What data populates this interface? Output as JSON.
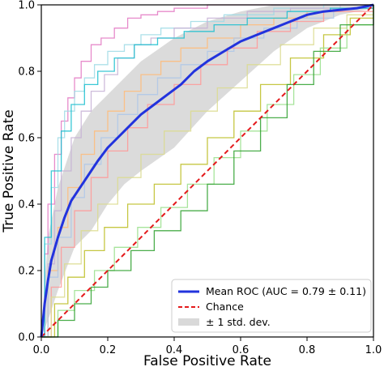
{
  "chart_data": {
    "type": "line",
    "title": "",
    "xlabel": "False Positive Rate",
    "ylabel": "True Positive Rate",
    "xlim": [
      0.0,
      1.0
    ],
    "ylim": [
      0.0,
      1.0
    ],
    "xticks": [
      "0.0",
      "0.2",
      "0.4",
      "0.6",
      "0.8",
      "1.0"
    ],
    "yticks": [
      "0.0",
      "0.2",
      "0.4",
      "0.6",
      "0.8",
      "1.0"
    ],
    "grid": false,
    "legend_position": "lower-right",
    "legend": [
      {
        "label": "Mean ROC (AUC = 0.79 ± 0.11)",
        "kind": "line",
        "color": "#2233dd"
      },
      {
        "label": "Chance",
        "kind": "dashed",
        "color": "#e41a1c"
      },
      {
        "label": "± 1 std. dev.",
        "kind": "band",
        "color": "#cfcfcf"
      }
    ],
    "mean_roc": {
      "name": "Mean ROC (AUC = 0.79 ± 0.11)",
      "color": "#2233dd",
      "x": [
        0,
        0.01,
        0.02,
        0.03,
        0.05,
        0.07,
        0.09,
        0.11,
        0.13,
        0.15,
        0.17,
        0.2,
        0.23,
        0.26,
        0.3,
        0.34,
        0.38,
        0.42,
        0.46,
        0.5,
        0.55,
        0.6,
        0.65,
        0.7,
        0.75,
        0.8,
        0.85,
        0.9,
        0.95,
        1.0
      ],
      "y": [
        0,
        0.1,
        0.17,
        0.23,
        0.3,
        0.36,
        0.41,
        0.44,
        0.47,
        0.5,
        0.53,
        0.57,
        0.6,
        0.63,
        0.67,
        0.7,
        0.73,
        0.76,
        0.8,
        0.83,
        0.86,
        0.89,
        0.91,
        0.93,
        0.95,
        0.97,
        0.98,
        0.985,
        0.99,
        1.0
      ]
    },
    "std_band": {
      "name": "± 1 std. dev.",
      "color": "#cfcfcf",
      "x": [
        0,
        0.02,
        0.05,
        0.1,
        0.15,
        0.2,
        0.25,
        0.3,
        0.4,
        0.5,
        0.6,
        0.7,
        0.8,
        0.9,
        1.0
      ],
      "upper": [
        0.02,
        0.3,
        0.45,
        0.6,
        0.68,
        0.73,
        0.78,
        0.83,
        0.9,
        0.95,
        0.98,
        1.0,
        1.0,
        1.0,
        1.0
      ],
      "lower": [
        0,
        0.05,
        0.14,
        0.27,
        0.32,
        0.4,
        0.46,
        0.5,
        0.57,
        0.68,
        0.77,
        0.86,
        0.93,
        0.97,
        0.99
      ]
    },
    "chance": {
      "name": "Chance",
      "color": "#e41a1c",
      "x": [
        0,
        1
      ],
      "y": [
        0,
        1
      ]
    },
    "fold_curves": [
      {
        "color": "#e377c2",
        "x": [
          0,
          0.01,
          0.02,
          0.04,
          0.06,
          0.08,
          0.1,
          0.12,
          0.15,
          0.18,
          0.22,
          0.26,
          0.3,
          0.35,
          0.4,
          0.5,
          0.6,
          0.75,
          0.9,
          1.0
        ],
        "y": [
          0,
          0.25,
          0.4,
          0.55,
          0.65,
          0.72,
          0.78,
          0.83,
          0.88,
          0.9,
          0.93,
          0.96,
          0.97,
          0.98,
          0.99,
          1.0,
          1.0,
          1.0,
          1.0,
          1.0
        ]
      },
      {
        "color": "#9edae5",
        "x": [
          0,
          0.01,
          0.03,
          0.05,
          0.07,
          0.1,
          0.13,
          0.16,
          0.2,
          0.25,
          0.3,
          0.36,
          0.45,
          0.55,
          0.7,
          0.85,
          1.0
        ],
        "y": [
          0,
          0.28,
          0.45,
          0.6,
          0.68,
          0.74,
          0.78,
          0.82,
          0.86,
          0.88,
          0.91,
          0.93,
          0.95,
          0.97,
          0.99,
          1.0,
          1.0
        ]
      },
      {
        "color": "#c5b0d5",
        "x": [
          0,
          0.02,
          0.04,
          0.06,
          0.09,
          0.12,
          0.15,
          0.19,
          0.23,
          0.28,
          0.33,
          0.4,
          0.5,
          0.62,
          0.75,
          0.9,
          1.0
        ],
        "y": [
          0,
          0.22,
          0.38,
          0.5,
          0.6,
          0.68,
          0.74,
          0.79,
          0.84,
          0.88,
          0.9,
          0.93,
          0.96,
          0.98,
          0.99,
          1.0,
          1.0
        ]
      },
      {
        "color": "#ffbb78",
        "x": [
          0,
          0.02,
          0.05,
          0.08,
          0.12,
          0.16,
          0.2,
          0.25,
          0.3,
          0.36,
          0.42,
          0.5,
          0.6,
          0.7,
          0.8,
          0.9,
          1.0
        ],
        "y": [
          0,
          0.2,
          0.33,
          0.45,
          0.55,
          0.62,
          0.68,
          0.74,
          0.79,
          0.83,
          0.87,
          0.9,
          0.94,
          0.96,
          0.98,
          0.99,
          1.0
        ]
      },
      {
        "color": "#aec7e8",
        "x": [
          0,
          0.02,
          0.05,
          0.09,
          0.13,
          0.18,
          0.23,
          0.29,
          0.35,
          0.42,
          0.5,
          0.58,
          0.67,
          0.77,
          0.88,
          1.0
        ],
        "y": [
          0,
          0.18,
          0.3,
          0.42,
          0.52,
          0.6,
          0.67,
          0.73,
          0.78,
          0.82,
          0.86,
          0.9,
          0.93,
          0.96,
          0.99,
          1.0
        ]
      },
      {
        "color": "#ff9896",
        "x": [
          0,
          0.03,
          0.06,
          0.1,
          0.15,
          0.2,
          0.26,
          0.32,
          0.4,
          0.48,
          0.56,
          0.65,
          0.75,
          0.85,
          1.0
        ],
        "y": [
          0,
          0.15,
          0.27,
          0.38,
          0.48,
          0.56,
          0.63,
          0.7,
          0.76,
          0.82,
          0.87,
          0.92,
          0.95,
          0.98,
          1.0
        ]
      },
      {
        "color": "#dbdb8d",
        "x": [
          0,
          0.03,
          0.07,
          0.12,
          0.17,
          0.23,
          0.3,
          0.37,
          0.45,
          0.53,
          0.62,
          0.72,
          0.82,
          0.92,
          1.0
        ],
        "y": [
          0,
          0.12,
          0.22,
          0.32,
          0.4,
          0.48,
          0.55,
          0.62,
          0.68,
          0.75,
          0.82,
          0.88,
          0.93,
          0.97,
          1.0
        ]
      },
      {
        "color": "#bcbd22",
        "x": [
          0,
          0.04,
          0.08,
          0.13,
          0.19,
          0.26,
          0.34,
          0.42,
          0.5,
          0.58,
          0.66,
          0.75,
          0.85,
          0.93,
          1.0
        ],
        "y": [
          0,
          0.1,
          0.18,
          0.26,
          0.33,
          0.4,
          0.46,
          0.52,
          0.6,
          0.68,
          0.76,
          0.84,
          0.91,
          0.96,
          1.0
        ]
      },
      {
        "color": "#98df8a",
        "x": [
          0,
          0.05,
          0.1,
          0.16,
          0.22,
          0.29,
          0.36,
          0.44,
          0.52,
          0.6,
          0.68,
          0.76,
          0.84,
          0.92,
          1.0
        ],
        "y": [
          0,
          0.08,
          0.14,
          0.2,
          0.27,
          0.33,
          0.39,
          0.46,
          0.54,
          0.62,
          0.7,
          0.79,
          0.87,
          0.94,
          1.0
        ]
      },
      {
        "color": "#2ca02c",
        "x": [
          0,
          0.05,
          0.1,
          0.15,
          0.2,
          0.27,
          0.34,
          0.42,
          0.5,
          0.58,
          0.66,
          0.74,
          0.82,
          0.9,
          1.0
        ],
        "y": [
          0,
          0.05,
          0.1,
          0.15,
          0.2,
          0.26,
          0.32,
          0.38,
          0.46,
          0.56,
          0.66,
          0.76,
          0.86,
          0.94,
          1.0
        ]
      },
      {
        "color": "#17becf",
        "x": [
          0,
          0.01,
          0.03,
          0.06,
          0.09,
          0.13,
          0.17,
          0.22,
          0.28,
          0.35,
          0.43,
          0.52,
          0.62,
          0.74,
          0.87,
          1.0
        ],
        "y": [
          0,
          0.3,
          0.5,
          0.62,
          0.7,
          0.76,
          0.8,
          0.84,
          0.88,
          0.9,
          0.92,
          0.94,
          0.96,
          0.98,
          0.99,
          1.0
        ]
      }
    ]
  }
}
